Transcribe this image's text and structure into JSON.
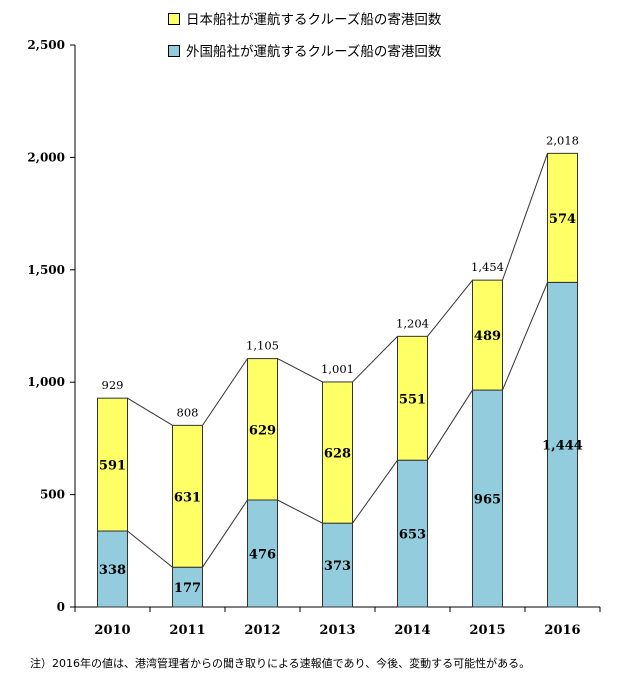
{
  "chart_data": {
    "type": "bar",
    "stacked": true,
    "categories": [
      "2010",
      "2011",
      "2012",
      "2013",
      "2014",
      "2015",
      "2016"
    ],
    "series": [
      {
        "name": "外国船社が運航するクルーズ船の寄港回数",
        "color": "#93cddd",
        "values": [
          338,
          177,
          476,
          373,
          653,
          965,
          1444
        ],
        "labels": [
          "338",
          "177",
          "476",
          "373",
          "653",
          "965",
          "1,444"
        ]
      },
      {
        "name": "日本船社が運航するクルーズ船の寄港回数",
        "color": "#ffff66",
        "values": [
          591,
          631,
          629,
          628,
          551,
          489,
          574
        ],
        "labels": [
          "591",
          "631",
          "629",
          "628",
          "551",
          "489",
          "574"
        ]
      }
    ],
    "totals": [
      929,
      808,
      1105,
      1001,
      1204,
      1454,
      2018
    ],
    "total_labels": [
      "929",
      "808",
      "1,105",
      "1,001",
      "1,204",
      "1,454",
      "2,018"
    ],
    "yticks": [
      "0",
      "500",
      "1,000",
      "1,500",
      "2,000",
      "2,500"
    ],
    "ylim": [
      0,
      2500
    ],
    "connector_lines": true,
    "grid": false
  },
  "legend": {
    "japan_label": "日本船社が運航するクルーズ船の寄港回数",
    "foreign_label": "外国船社が運航するクルーズ船の寄港回数"
  },
  "note": "注）2016年の値は、港湾管理者からの聞き取りによる速報値であり、今後、変動する可能性がある。"
}
